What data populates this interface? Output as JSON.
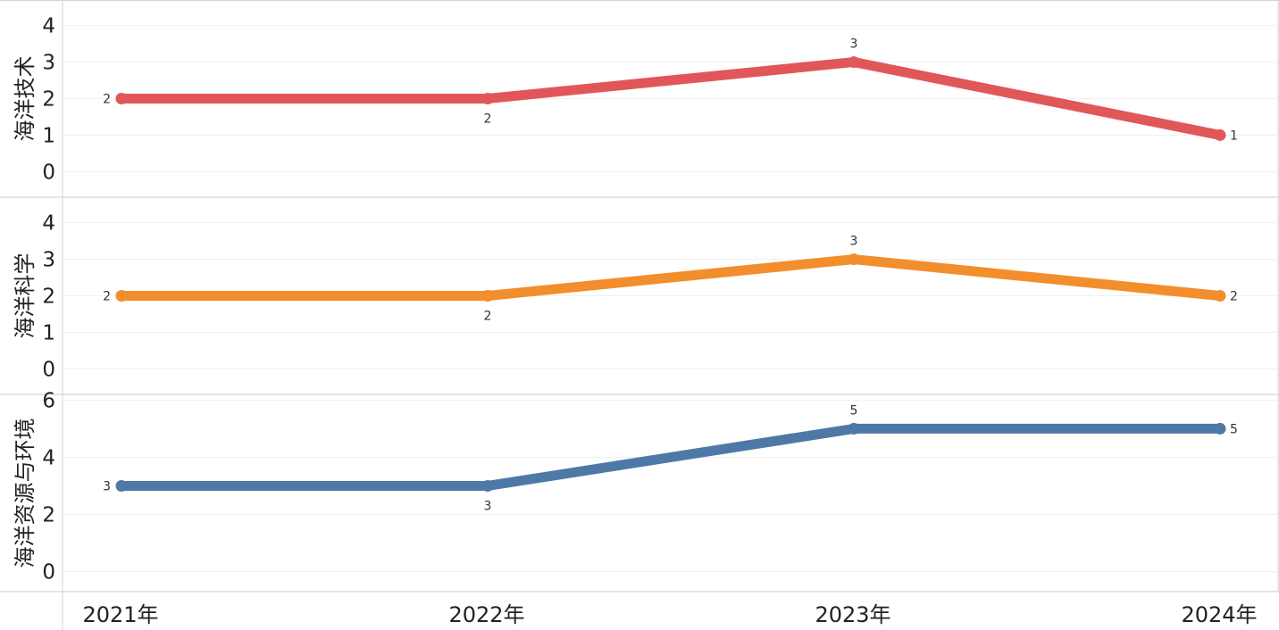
{
  "chart_data": {
    "type": "line",
    "categories": [
      "2021年",
      "2022年",
      "2023年",
      "2024年"
    ],
    "panels": [
      {
        "ylabel": "海洋技术",
        "color": "#e15759",
        "yticks": [
          0,
          1,
          2,
          3,
          4
        ],
        "ylim": [
          -0.7,
          4.7
        ],
        "values": [
          2,
          2,
          3,
          1
        ],
        "label_positions": [
          "left",
          "below",
          "above",
          "right"
        ]
      },
      {
        "ylabel": "海洋科学",
        "color": "#f28e2b",
        "yticks": [
          0,
          1,
          2,
          3,
          4
        ],
        "ylim": [
          -0.7,
          4.7
        ],
        "values": [
          2,
          2,
          3,
          2
        ],
        "label_positions": [
          "left",
          "below",
          "above",
          "right"
        ]
      },
      {
        "ylabel": "海洋资源与环境",
        "color": "#4e79a7",
        "yticks": [
          0,
          2,
          4,
          6
        ],
        "ylim": [
          -0.7,
          6.2
        ],
        "values": [
          3,
          3,
          5,
          5
        ],
        "label_positions": [
          "left",
          "below",
          "above",
          "right"
        ]
      }
    ],
    "grid": true,
    "legend": "none"
  }
}
